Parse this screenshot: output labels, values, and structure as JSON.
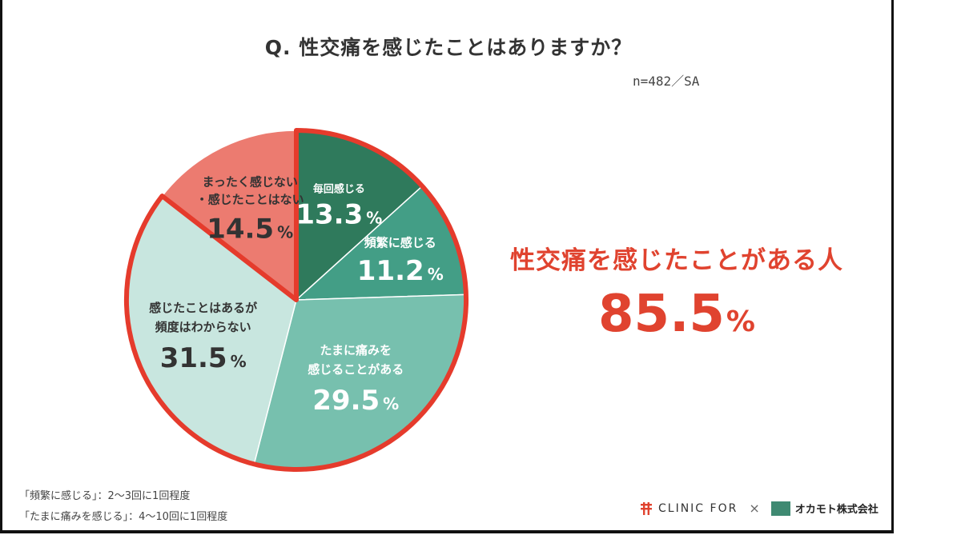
{
  "title": "Q.  性交痛を感じたことはありますか？",
  "sample": "n=482／SA",
  "chart_data": {
    "type": "pie",
    "start_at": "top",
    "direction": "clockwise",
    "slices": [
      {
        "label_lines": [
          "毎回感じる"
        ],
        "value": 13.3,
        "value_text": "13.3",
        "pct_text": "%",
        "color": "#2f7a5c",
        "text_color": "#ffffff",
        "highlighted": true
      },
      {
        "label_lines": [
          "頻繁に感じる"
        ],
        "value": 11.2,
        "value_text": "11.2",
        "pct_text": "%",
        "color": "#439e86",
        "text_color": "#ffffff",
        "highlighted": true
      },
      {
        "label_lines": [
          "たまに痛みを",
          "感じることがある"
        ],
        "value": 29.5,
        "value_text": "29.5",
        "pct_text": "%",
        "color": "#77c0ae",
        "text_color": "#ffffff",
        "highlighted": true
      },
      {
        "label_lines": [
          "感じたことはあるが",
          "頻度はわからない"
        ],
        "value": 31.5,
        "value_text": "31.5",
        "pct_text": "%",
        "color": "#c8e6df",
        "text_color": "#333333",
        "highlighted": true
      },
      {
        "label_lines": [
          "まったく感じない",
          "・感じたことはない"
        ],
        "value": 14.5,
        "value_text": "14.5",
        "pct_text": "%",
        "color": "#ec7b70",
        "text_color": "#333333",
        "highlighted": false
      }
    ],
    "highlight_stroke": "#e53b2c"
  },
  "highlight": {
    "label": "性交痛を感じたことがある人",
    "value": "85.5",
    "unit": "%"
  },
  "footnotes": [
    "「頻繁に感じる」：2〜3回に1回程度",
    "「たまに痛みを感じる」：4〜10回に1回程度"
  ],
  "logos": {
    "clinic": "CLINIC FOR",
    "times": "×",
    "okamoto": "オカモト株式会社"
  }
}
